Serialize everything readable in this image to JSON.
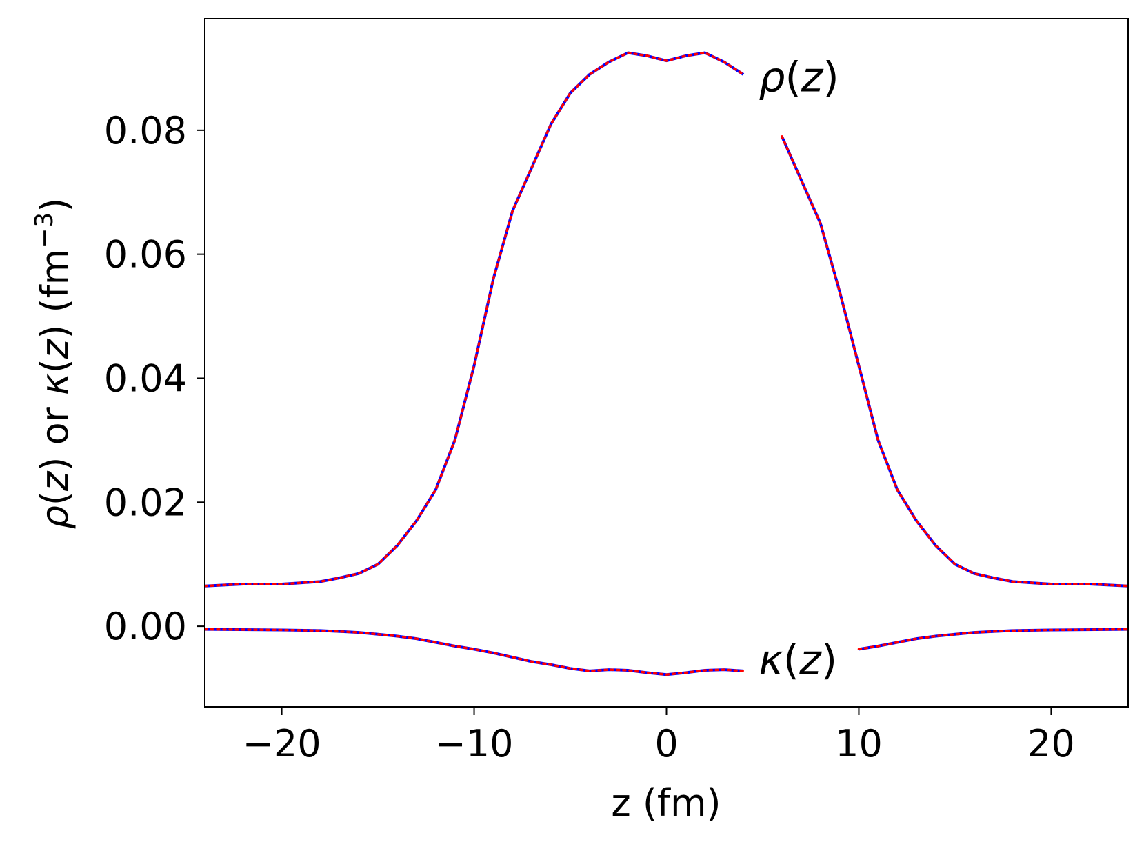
{
  "chart_data": {
    "type": "line",
    "xlabel": "z (fm)",
    "ylabel_parts": {
      "rho": "ρ",
      "z1": "z",
      "or": " or ",
      "kappa": "κ",
      "z2": "z",
      "unit": "fm",
      "exp": "−3"
    },
    "xlim": [
      -24,
      24
    ],
    "ylim": [
      -0.013,
      0.098
    ],
    "xticks": [
      -20,
      -10,
      0,
      10,
      20
    ],
    "xtick_labels": [
      "−20",
      "−10",
      "0",
      "10",
      "20"
    ],
    "yticks": [
      0.0,
      0.02,
      0.04,
      0.06,
      0.08
    ],
    "ytick_labels": [
      "0.00",
      "0.02",
      "0.04",
      "0.06",
      "0.08"
    ],
    "grid": false,
    "annotations": [
      {
        "sym": "ρ",
        "var": "z",
        "x": 4.8,
        "y": 0.0885
      },
      {
        "sym": "κ",
        "var": "z",
        "x": 4.8,
        "y": -0.0055
      }
    ],
    "colors": {
      "solid": "#0000ff",
      "dotted": "#ff0000"
    },
    "rho": {
      "x": [
        -24,
        -22,
        -20,
        -18,
        -17,
        -16,
        -15,
        -14,
        -13,
        -12,
        -11,
        -10,
        -9,
        -8,
        -7,
        -6,
        -5,
        -4,
        -3,
        -2,
        -1,
        0,
        1,
        2,
        3,
        4,
        5,
        6,
        7,
        8,
        9,
        10,
        11,
        12,
        13,
        14,
        15,
        16,
        17,
        18,
        20,
        22,
        24
      ],
      "y": [
        0.0065,
        0.0068,
        0.0068,
        0.0072,
        0.0078,
        0.0085,
        0.01,
        0.013,
        0.017,
        0.022,
        0.03,
        0.042,
        0.056,
        0.067,
        0.074,
        0.081,
        0.086,
        0.089,
        0.091,
        0.0925,
        0.092,
        0.0912,
        0.092,
        0.0925,
        0.091,
        0.089,
        0.085,
        0.079,
        0.072,
        0.065,
        0.054,
        0.042,
        0.03,
        0.022,
        0.017,
        0.013,
        0.01,
        0.0085,
        0.0078,
        0.0072,
        0.0068,
        0.0068,
        0.0065
      ]
    },
    "kappa": {
      "x": [
        -24,
        -20,
        -18,
        -16,
        -15,
        -14,
        -13,
        -12,
        -11,
        -10,
        -9,
        -8,
        -7,
        -6,
        -5,
        -4,
        -3,
        -2,
        -1,
        0,
        1,
        2,
        3,
        4,
        5,
        6,
        7,
        8,
        9,
        10,
        11,
        12,
        13,
        14,
        15,
        16,
        18,
        20,
        24
      ],
      "y": [
        -0.0005,
        -0.0006,
        -0.0007,
        -0.001,
        -0.0013,
        -0.0016,
        -0.002,
        -0.0026,
        -0.0032,
        -0.0037,
        -0.0043,
        -0.005,
        -0.0057,
        -0.0062,
        -0.0068,
        -0.0072,
        -0.007,
        -0.0071,
        -0.0075,
        -0.0078,
        -0.0075,
        -0.0071,
        -0.007,
        -0.0072,
        -0.0068,
        -0.0062,
        -0.0057,
        -0.005,
        -0.0043,
        -0.0037,
        -0.0032,
        -0.0026,
        -0.002,
        -0.0016,
        -0.0013,
        -0.001,
        -0.0007,
        -0.0006,
        -0.0005
      ]
    },
    "gaps_x": [
      [
        4.3,
        5.6
      ],
      [
        4.3,
        10.0
      ]
    ]
  }
}
